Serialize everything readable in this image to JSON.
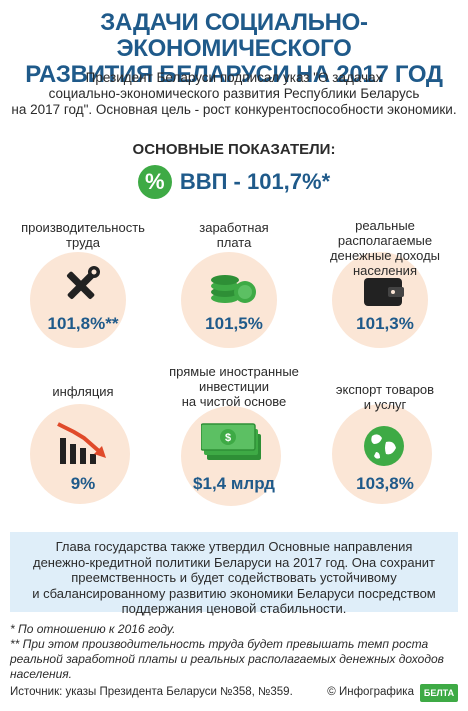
{
  "title": {
    "line1": "ЗАДАЧИ СОЦИАЛЬНО-ЭКОНОМИЧЕСКОГО",
    "line2": "РАЗВИТИЯ БЕЛАРУСИ НА 2017 ГОД"
  },
  "intro": {
    "line1": "Президент Беларуси подписал указ \"О задачах",
    "line2": "социально-экономического развития Республики Беларусь",
    "line3": "на 2017 год\". Основная цель - рост конкурентоспособности экономики."
  },
  "indicators_heading": "ОСНОВНЫЕ ПОКАЗАТЕЛИ:",
  "gdp": {
    "badge": "%",
    "text": "ВВП - 101,7%*"
  },
  "indicators": [
    {
      "label1": "производительность",
      "label2": "труда",
      "label3": "",
      "value": "101,8%**",
      "icon": "tools-icon"
    },
    {
      "label1": "заработная",
      "label2": "плата",
      "label3": "",
      "value": "101,5%",
      "icon": "coins-icon"
    },
    {
      "label1": "реальные располагаемые",
      "label2": "денежные доходы",
      "label3": "населения",
      "value": "101,3%",
      "icon": "wallet-icon"
    },
    {
      "label1": "инфляция",
      "label2": "",
      "label3": "",
      "value": "9%",
      "icon": "downtrend-chart-icon"
    },
    {
      "label1": "прямые иностранные",
      "label2": "инвестиции",
      "label3": "на чистой основе",
      "value": "$1,4 млрд",
      "icon": "cash-stack-icon"
    },
    {
      "label1": "экспорт товаров",
      "label2": "и услуг",
      "label3": "",
      "value": "103,8%",
      "icon": "globe-icon"
    }
  ],
  "summary": {
    "line1": "Глава государства также утвердил Основные направления",
    "line2": "денежно-кредитной политики Беларуси на 2017 год. Она сохранит",
    "line3": "преемственность и будет содействовать устойчивому",
    "line4": "и сбалансированному развитию экономики Беларуси посредством",
    "line5": "поддержания ценовой стабильности."
  },
  "notes": {
    "note1": "* По отношению к 2016 году.",
    "note2a": "** При этом производительность труда будет превышать темп роста",
    "note2b": "реальной заработной платы и реальных располагаемых денежных доходов",
    "note2c": "населения."
  },
  "footer": {
    "source": "Источник: указы Президента Беларуси №358, №359.",
    "copyright": "© Инфографика",
    "logo": "БЕЛТА"
  },
  "colors": {
    "title": "#1f5a8a",
    "accent_green": "#3eaa45",
    "circle_bg": "#fbe6d6",
    "summary_bg": "#dfeef9",
    "icon_dark": "#222222"
  }
}
